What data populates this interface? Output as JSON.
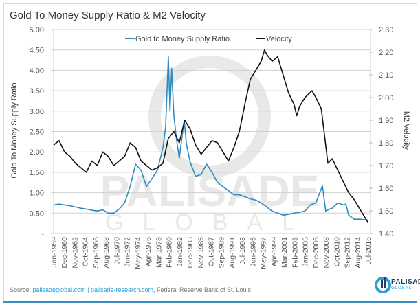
{
  "chart_data": {
    "type": "line",
    "title": "Gold To Money Supply Ratio & M2 Velocity",
    "ylabel_left": "Gold To Money Supply Ratio",
    "ylabel_right": "M2 Velocity",
    "ylim_left": [
      0,
      5
    ],
    "ylim_right": [
      1.4,
      2.3
    ],
    "yticks_left": [
      "-",
      "0.50",
      "1.00",
      "1.50",
      "2.00",
      "2.50",
      "3.00",
      "3.50",
      "4.00",
      "4.50",
      "5.00"
    ],
    "yticks_right": [
      "1.40",
      "1.50",
      "1.60",
      "1.70",
      "1.80",
      "1.90",
      "2.00",
      "2.10",
      "2.20",
      "2.30"
    ],
    "xlim": [
      1959,
      2016.5
    ],
    "xticks": [
      "Jan-1959",
      "Dec-1960",
      "Nov-1962",
      "Oct-1964",
      "Sep-1966",
      "Aug-1968",
      "Jul-1970",
      "Jun-1972",
      "May-1974",
      "Apr-1976",
      "Mar-1978",
      "Feb-1980",
      "Jan-1982",
      "Dec-1983",
      "Nov-1985",
      "Oct-1987",
      "Sep-1989",
      "Aug-1991",
      "Jul-1993",
      "Jun-1995",
      "May-1997",
      "Apr-1999",
      "Mar-2001",
      "Feb-2003",
      "Jan-2005",
      "Dec-2006",
      "Nov-2008",
      "Oct-2010",
      "Sep-2012",
      "Aug-2014",
      "Jul-2016"
    ],
    "grid": true,
    "legend_position": "top-center",
    "series": [
      {
        "name": "Gold to Money Supply Ratio",
        "axis": "left",
        "color": "#2e8bc0",
        "x": [
          1959,
          1960,
          1961,
          1962,
          1963,
          1964,
          1965,
          1966,
          1967,
          1968,
          1969,
          1970,
          1971,
          1972,
          1973,
          1974,
          1975,
          1976,
          1977,
          1978,
          1979,
          1979.5,
          1980,
          1980.3,
          1980.6,
          1981,
          1981.5,
          1982,
          1982.9,
          1983.3,
          1984,
          1985,
          1986,
          1987,
          1988,
          1989,
          1990,
          1991,
          1992,
          1993,
          1994,
          1995,
          1996,
          1997,
          1998,
          1999,
          2000,
          2001,
          2002,
          2003,
          2004,
          2005,
          2006,
          2007,
          2008.2,
          2008.8,
          2009.5,
          2010,
          2011,
          2012,
          2012.5,
          2013,
          2014,
          2015,
          2016.5
        ],
        "y": [
          0.7,
          0.72,
          0.7,
          0.68,
          0.65,
          0.62,
          0.6,
          0.57,
          0.55,
          0.58,
          0.5,
          0.5,
          0.6,
          0.75,
          1.15,
          1.7,
          1.55,
          1.15,
          1.35,
          1.55,
          2.1,
          2.6,
          4.33,
          3.0,
          4.05,
          2.9,
          2.3,
          1.85,
          2.78,
          2.2,
          1.75,
          1.4,
          1.45,
          1.7,
          1.5,
          1.25,
          1.15,
          1.05,
          0.95,
          0.95,
          0.9,
          0.85,
          0.82,
          0.75,
          0.65,
          0.55,
          0.5,
          0.45,
          0.47,
          0.5,
          0.52,
          0.55,
          0.7,
          0.75,
          1.17,
          0.55,
          0.6,
          0.62,
          0.75,
          0.7,
          0.72,
          0.45,
          0.35,
          0.35,
          0.33
        ]
      },
      {
        "name": "Velocity",
        "axis": "right",
        "color": "#111111",
        "x": [
          1959,
          1960,
          1961,
          1962,
          1963,
          1964,
          1965,
          1966,
          1967,
          1968,
          1969,
          1970,
          1971,
          1972,
          1973,
          1974,
          1975,
          1976,
          1977,
          1978,
          1979,
          1980,
          1981,
          1982,
          1983,
          1984,
          1985,
          1986,
          1987,
          1988,
          1989,
          1990,
          1991,
          1992,
          1993,
          1994,
          1995,
          1996,
          1997,
          1997.6,
          1998,
          1999,
          2000,
          2001,
          2002,
          2003,
          2003.5,
          2004,
          2005,
          2006.3,
          2007,
          2008,
          2009.2,
          2010,
          2011,
          2012,
          2013,
          2014,
          2015,
          2016.5
        ],
        "y": [
          1.79,
          1.81,
          1.76,
          1.74,
          1.71,
          1.69,
          1.67,
          1.72,
          1.7,
          1.76,
          1.74,
          1.7,
          1.72,
          1.74,
          1.8,
          1.78,
          1.72,
          1.7,
          1.68,
          1.69,
          1.71,
          1.82,
          1.85,
          1.8,
          1.9,
          1.86,
          1.79,
          1.75,
          1.78,
          1.81,
          1.8,
          1.76,
          1.72,
          1.78,
          1.85,
          1.97,
          2.08,
          2.12,
          2.16,
          2.21,
          2.19,
          2.16,
          2.18,
          2.1,
          2.02,
          1.97,
          1.92,
          1.96,
          2.0,
          2.03,
          2.0,
          1.95,
          1.71,
          1.73,
          1.68,
          1.63,
          1.58,
          1.55,
          1.51,
          1.45
        ]
      }
    ]
  },
  "footer": {
    "source_label": "Source: ",
    "link1": "palisadeglobal.com",
    "separator": " | ",
    "link2": "palisade-research.com",
    "rest": ", Federal Reserve Bank of St. Louis"
  },
  "logo": {
    "name": "PALISADE",
    "sub": "GLOBAL"
  },
  "watermark": {
    "line1": "PALISADE",
    "line2": "GLOBAL"
  }
}
